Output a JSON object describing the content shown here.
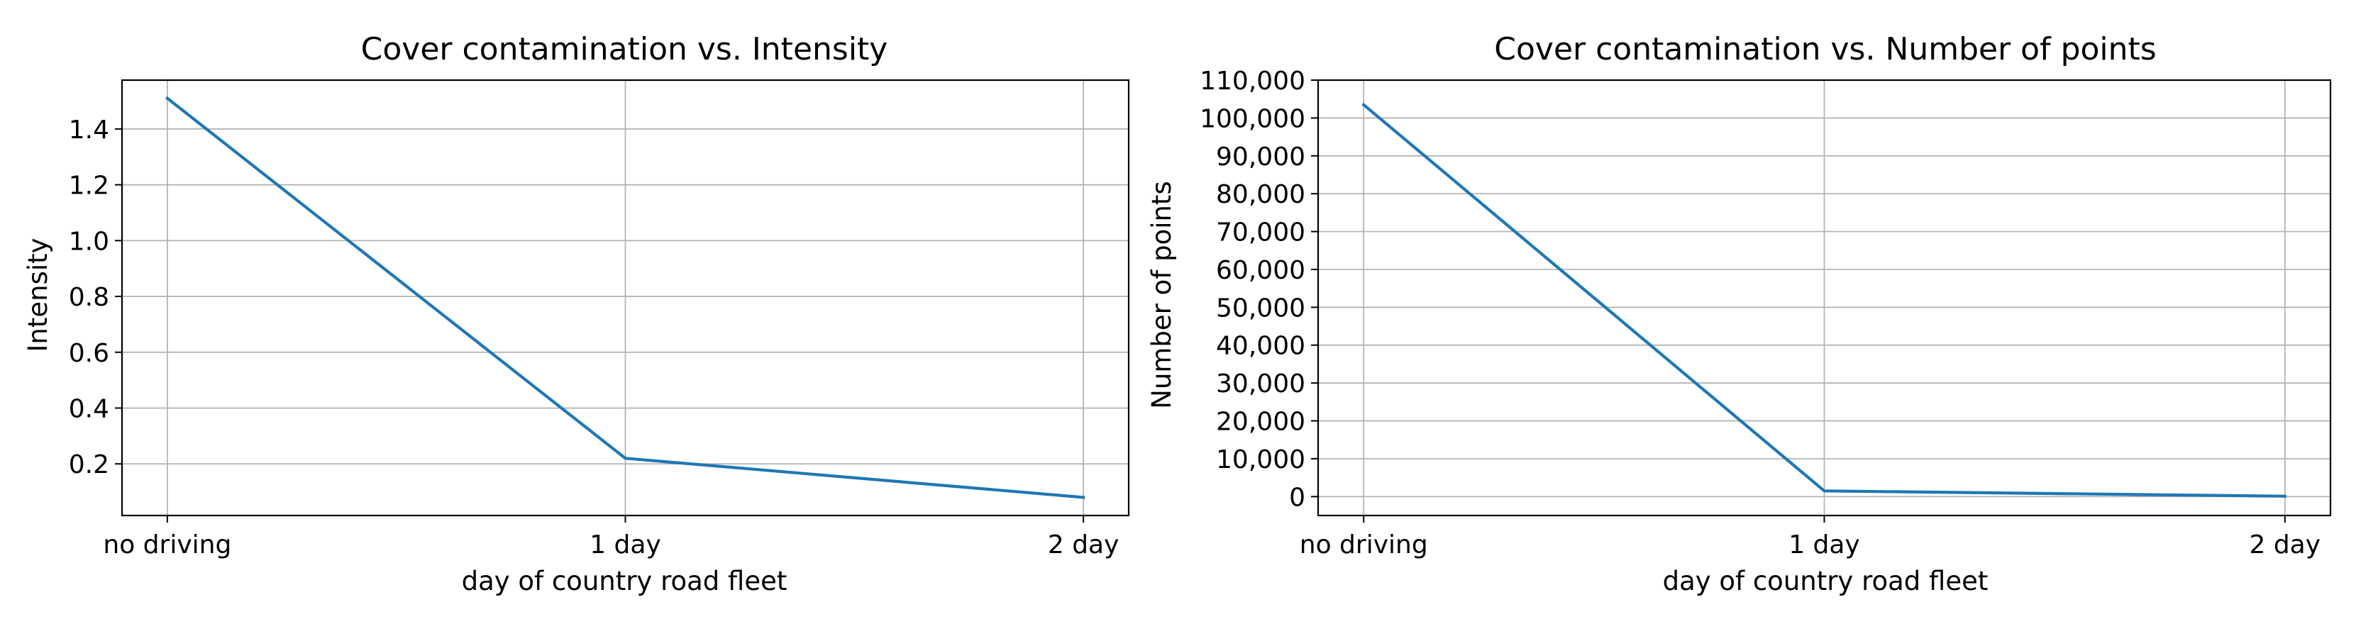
{
  "colors": {
    "series": "#1f77b4"
  },
  "chart_data": [
    {
      "type": "line",
      "title": "Cover contamination vs. Intensity",
      "xlabel": "day of country road fleet",
      "ylabel": "Intensity",
      "categories": [
        "no driving",
        "1 day",
        "2 day"
      ],
      "series": [
        {
          "values": [
            1.51,
            0.22,
            0.08
          ]
        }
      ],
      "yticks": [
        0.2,
        0.4,
        0.6,
        0.8,
        1.0,
        1.2,
        1.4
      ],
      "ytick_labels": [
        "0.2",
        "0.4",
        "0.6",
        "0.8",
        "1.0",
        "1.2",
        "1.4"
      ],
      "ylim": [
        0.015,
        1.575
      ],
      "grid": true,
      "legend": "none"
    },
    {
      "type": "line",
      "title": "Cover contamination vs. Number of points",
      "xlabel": "day of country road fleet",
      "ylabel": "Number of points",
      "categories": [
        "no driving",
        "1 day",
        "2 day"
      ],
      "series": [
        {
          "values": [
            103500,
            1500,
            100
          ]
        }
      ],
      "yticks": [
        0,
        10000,
        20000,
        30000,
        40000,
        50000,
        60000,
        70000,
        80000,
        90000,
        100000,
        110000
      ],
      "ytick_labels": [
        "0",
        "10,000",
        "20,000",
        "30,000",
        "40,000",
        "50,000",
        "60,000",
        "70,000",
        "80,000",
        "90,000",
        "100,000",
        "110,000"
      ],
      "ylim": [
        -5000,
        110000
      ],
      "grid": true,
      "legend": "none"
    }
  ]
}
